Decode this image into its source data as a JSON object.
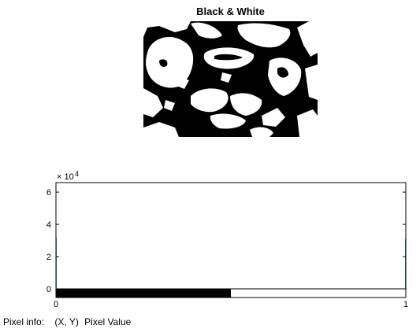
{
  "figure": {
    "title": "Black & White"
  },
  "histogram": {
    "exponent_base": "× 10",
    "exponent_power": "4",
    "y_ticks": [
      "6",
      "4",
      "2",
      "0"
    ],
    "x_ticks": [
      "0",
      "1"
    ],
    "y_max_data": 62000,
    "colorbar_black_fraction": 0.5
  },
  "chart_data": {
    "type": "bar",
    "categories": [
      "0",
      "1"
    ],
    "values": [
      32000,
      31000
    ],
    "xlim": [
      0,
      1
    ],
    "ylim": [
      0,
      62000
    ],
    "y_tick_values": [
      0,
      20000,
      40000,
      60000
    ],
    "grid": false
  },
  "status_bar": {
    "label": "Pixel info:",
    "coord_label": "(X, Y)",
    "value_label": "Pixel Value"
  },
  "colors": {
    "axes": "#000000",
    "bar": "#1f9fbf",
    "background": "#ffffff"
  }
}
